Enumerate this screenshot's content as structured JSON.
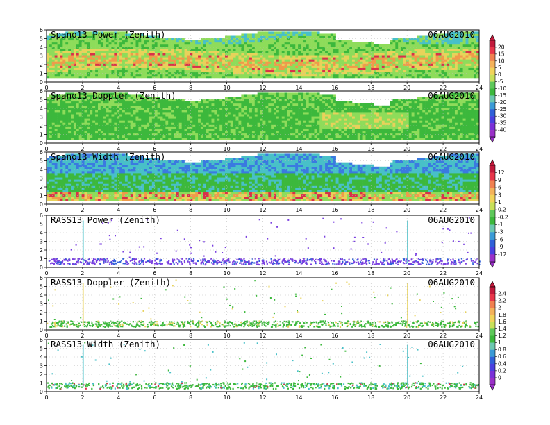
{
  "chart_data": [
    {
      "type": "heatmap",
      "title": "Spano13 Power (Zenith)",
      "date": "06AUG2010",
      "xlim": [
        0,
        24
      ],
      "ylim": [
        0,
        6
      ],
      "x_ticks": [
        "0",
        "2",
        "4",
        "6",
        "8",
        "10",
        "12",
        "14",
        "16",
        "18",
        "20",
        "22",
        "24"
      ],
      "y_ticks": [
        "0",
        "1",
        "2",
        "3",
        "4",
        "5",
        "6"
      ],
      "grid": true,
      "colorbar": "power_doppler_scale",
      "description_dense": true
    },
    {
      "type": "heatmap",
      "title": "Spano13 Doppler (Zenith)",
      "date": "06AUG2010",
      "xlim": [
        0,
        24
      ],
      "ylim": [
        0,
        6
      ],
      "x_ticks": [
        "0",
        "2",
        "4",
        "6",
        "8",
        "10",
        "12",
        "14",
        "16",
        "18",
        "20",
        "22",
        "24"
      ],
      "y_ticks": [
        "0",
        "1",
        "2",
        "3",
        "4",
        "5",
        "6"
      ],
      "grid": true,
      "colorbar": "power_doppler_scale"
    },
    {
      "type": "heatmap",
      "title": "Spano13 Width (Zenith)",
      "date": "06AUG2010",
      "xlim": [
        0,
        24
      ],
      "ylim": [
        0,
        6
      ],
      "x_ticks": [
        "0",
        "2",
        "4",
        "6",
        "8",
        "10",
        "12",
        "14",
        "16",
        "18",
        "20",
        "22",
        "24"
      ],
      "y_ticks": [
        "0",
        "1",
        "2",
        "3",
        "4",
        "5",
        "6"
      ],
      "grid": true,
      "colorbar": "width_rasspower_scale"
    },
    {
      "type": "scatter",
      "title": "RASS13 Power (Zenith)",
      "date": "06AUG2010",
      "xlim": [
        0,
        24
      ],
      "ylim": [
        0,
        6
      ],
      "x_ticks": [
        "0",
        "2",
        "4",
        "6",
        "8",
        "10",
        "12",
        "14",
        "16",
        "18",
        "20",
        "22",
        "24"
      ],
      "y_ticks": [
        "0",
        "1",
        "2",
        "3",
        "4",
        "5",
        "6"
      ],
      "grid": true,
      "colorbar": "width_rasspower_scale"
    },
    {
      "type": "scatter",
      "title": "RASS13 Doppler (Zenith)",
      "date": "06AUG2010",
      "xlim": [
        0,
        24
      ],
      "ylim": [
        0,
        6
      ],
      "x_ticks": [
        "0",
        "2",
        "4",
        "6",
        "8",
        "10",
        "12",
        "14",
        "16",
        "18",
        "20",
        "22",
        "24"
      ],
      "y_ticks": [
        "0",
        "1",
        "2",
        "3",
        "4",
        "5",
        "6"
      ],
      "grid": true,
      "colorbar": "rass_scale"
    },
    {
      "type": "scatter",
      "title": "RASS13 Width (Zenith)",
      "date": "06AUG2010",
      "xlim": [
        0,
        24
      ],
      "ylim": [
        0,
        6
      ],
      "x_ticks": [
        "0",
        "2",
        "4",
        "6",
        "8",
        "10",
        "12",
        "14",
        "16",
        "18",
        "20",
        "22",
        "24"
      ],
      "y_ticks": [
        "0",
        "1",
        "2",
        "3",
        "4",
        "5",
        "6"
      ],
      "grid": true,
      "colorbar": "rass_scale"
    }
  ],
  "colorbars": {
    "power_doppler_scale": {
      "labels": [
        "20",
        "15",
        "10",
        "5",
        "0",
        "-5",
        "-10",
        "-15",
        "-20",
        "-25",
        "-30",
        "-35",
        "-40"
      ],
      "colors": [
        "#c21a3c",
        "#e8354a",
        "#f08050",
        "#f4b25a",
        "#f2d35a",
        "#c8e05a",
        "#5ec85a",
        "#3cb83c",
        "#6cc8b0",
        "#3a9ad6",
        "#3060d8",
        "#4a40e0",
        "#7a30d8",
        "#9a30c8"
      ]
    },
    "width_rasspower_scale": {
      "labels": [
        "12",
        "9",
        "6",
        "3",
        "1",
        "0.2",
        "-0.2",
        "-1",
        "-3",
        "-6",
        "-9",
        "-12"
      ],
      "colors": [
        "#c21a3c",
        "#e8354a",
        "#f08050",
        "#f4b25a",
        "#f2d35a",
        "#c8e05a",
        "#5ec85a",
        "#3cb83c",
        "#6cc8b0",
        "#3a9ad6",
        "#3060d8",
        "#4a40e0",
        "#9a30c8"
      ]
    },
    "rass_scale": {
      "labels": [
        "2.4",
        "2.2",
        "2",
        "1.8",
        "1.6",
        "1.4",
        "1.2",
        "1",
        "0.8",
        "0.6",
        "0.4",
        "0.2",
        "0"
      ],
      "colors": [
        "#c21a3c",
        "#e8354a",
        "#f08050",
        "#f4b25a",
        "#f2d35a",
        "#c8e05a",
        "#5ec85a",
        "#3cb83c",
        "#6cc8b0",
        "#3a9ad6",
        "#3060d8",
        "#4a40e0",
        "#7a30d8",
        "#9a30c8"
      ]
    }
  },
  "colors": {
    "frame": "#000000",
    "grid": "#bcbcbc",
    "heat_green": "#3cb83c",
    "heat_light_green": "#8edc5a",
    "heat_yellow": "#e8d25a",
    "heat_orange": "#f09a4a",
    "heat_red": "#d8304a",
    "heat_cyan": "#48c0c8",
    "heat_blue": "#3a7ae0",
    "rass_purple": "#7a40e0",
    "rass_blue": "#3060d8"
  }
}
